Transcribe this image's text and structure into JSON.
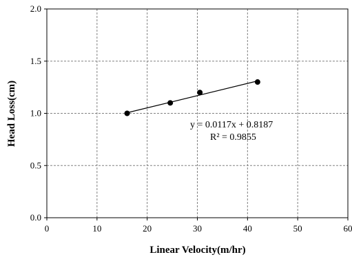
{
  "chart_data": {
    "type": "scatter",
    "title": "",
    "xlabel": "Linear Velocity(m/hr)",
    "ylabel": "Head Loss(cm)",
    "xlim": [
      0,
      60
    ],
    "ylim": [
      0.0,
      2.0
    ],
    "x_ticks": [
      0,
      10,
      20,
      30,
      40,
      50,
      60
    ],
    "y_ticks": [
      0.0,
      0.5,
      1.0,
      1.5,
      2.0
    ],
    "x_tick_labels": [
      "0",
      "10",
      "20",
      "30",
      "40",
      "50",
      "60"
    ],
    "y_tick_labels": [
      "0.0",
      "0.5",
      "1.0",
      "1.5",
      "2.0"
    ],
    "grid": true,
    "grid_style": "dashed",
    "points": [
      {
        "x": 16.0,
        "y": 1.0
      },
      {
        "x": 24.6,
        "y": 1.1
      },
      {
        "x": 30.5,
        "y": 1.2
      },
      {
        "x": 42.0,
        "y": 1.3
      }
    ],
    "trendline": {
      "slope": 0.0117,
      "intercept": 0.8187,
      "x_range": [
        16.0,
        42.0
      ],
      "equation": "y = 0.0117x + 0.8187",
      "r2": "R² = 0.9855"
    },
    "colors": {
      "marker": "#000000",
      "line": "#000000",
      "grid": "#808080"
    }
  }
}
